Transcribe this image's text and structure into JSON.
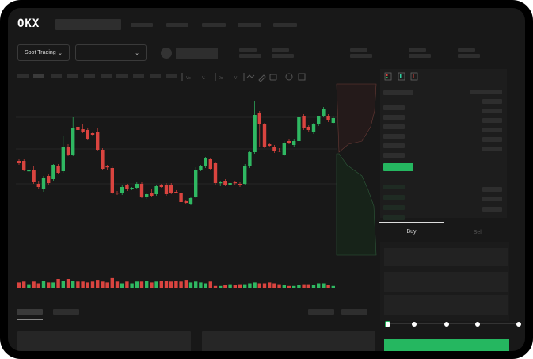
{
  "app": {
    "brand": "OKX"
  },
  "toolbar": {
    "market_select": "Spot Trading"
  },
  "trade": {
    "buy_tab": "Buy",
    "sell_tab": "Sell"
  },
  "colors": {
    "up": "#2fb862",
    "down": "#d9443f",
    "accent": "#25b760",
    "background": "#181818"
  },
  "icons": [
    "chevron-down-icon",
    "order-book-both-icon",
    "order-book-bids-icon",
    "order-book-asks-icon",
    "indicator-icon",
    "draw-line-icon",
    "ruler-icon",
    "camera-icon",
    "settings-icon",
    "fullscreen-icon"
  ],
  "chart_data": {
    "type": "candlestick",
    "grid": true,
    "candles": [
      [
        97,
        99,
        92,
        94
      ],
      [
        97,
        99,
        84,
        86
      ],
      [
        84,
        87,
        83,
        85
      ],
      [
        85,
        90,
        68,
        70
      ],
      [
        68,
        71,
        62,
        64
      ],
      [
        61,
        78,
        58,
        76
      ],
      [
        78,
        80,
        67,
        69
      ],
      [
        74,
        93,
        72,
        92
      ],
      [
        91,
        93,
        80,
        82
      ],
      [
        84,
        128,
        82,
        115
      ],
      [
        114,
        118,
        103,
        105
      ],
      [
        105,
        152,
        103,
        138
      ],
      [
        140,
        142,
        134,
        136
      ],
      [
        137,
        144,
        132,
        134
      ],
      [
        136,
        138,
        123,
        125
      ],
      [
        132,
        134,
        128,
        130
      ],
      [
        134,
        138,
        109,
        111
      ],
      [
        111,
        113,
        85,
        87
      ],
      [
        90,
        92,
        86,
        89
      ],
      [
        88,
        90,
        55,
        57
      ],
      [
        57,
        59,
        54,
        56
      ],
      [
        56,
        66,
        54,
        64
      ],
      [
        66,
        68,
        59,
        61
      ],
      [
        62,
        64,
        60,
        63
      ],
      [
        63,
        70,
        61,
        68
      ],
      [
        68,
        70,
        50,
        52
      ],
      [
        51,
        56,
        49,
        55
      ],
      [
        57,
        61,
        51,
        53
      ],
      [
        55,
        66,
        53,
        65
      ],
      [
        66,
        68,
        63,
        64
      ],
      [
        67,
        69,
        53,
        55
      ],
      [
        67,
        69,
        55,
        57
      ],
      [
        58,
        60,
        56,
        57
      ],
      [
        56,
        58,
        43,
        45
      ],
      [
        46,
        48,
        43,
        44
      ],
      [
        43,
        52,
        41,
        50
      ],
      [
        52,
        89,
        50,
        85
      ],
      [
        86,
        92,
        84,
        90
      ],
      [
        90,
        102,
        88,
        100
      ],
      [
        99,
        101,
        85,
        87
      ],
      [
        94,
        96,
        67,
        69
      ],
      [
        69,
        72,
        65,
        70
      ],
      [
        72,
        74,
        65,
        67
      ],
      [
        67,
        72,
        65,
        69
      ],
      [
        70,
        72,
        66,
        69
      ],
      [
        68,
        70,
        64,
        67
      ],
      [
        68,
        93,
        66,
        91
      ],
      [
        90,
        110,
        88,
        108
      ],
      [
        108,
        172,
        106,
        155
      ],
      [
        157,
        160,
        114,
        143
      ],
      [
        143,
        145,
        113,
        115
      ],
      [
        118,
        120,
        115,
        116
      ],
      [
        115,
        117,
        107,
        109
      ],
      [
        110,
        113,
        108,
        109
      ],
      [
        105,
        122,
        103,
        120
      ],
      [
        122,
        124,
        118,
        120
      ],
      [
        117,
        124,
        115,
        122
      ],
      [
        122,
        154,
        120,
        152
      ],
      [
        154,
        156,
        136,
        138
      ],
      [
        140,
        142,
        134,
        136
      ],
      [
        133,
        145,
        131,
        143
      ],
      [
        143,
        154,
        141,
        153
      ],
      [
        154,
        165,
        152,
        163
      ],
      [
        154,
        156,
        146,
        148
      ],
      [
        145,
        153,
        143,
        151
      ]
    ],
    "volume": [
      6,
      7,
      4,
      7,
      5,
      8,
      6,
      6,
      10,
      8,
      10,
      8,
      7,
      7,
      6,
      7,
      9,
      7,
      6,
      11,
      7,
      5,
      7,
      5,
      7,
      7,
      8,
      6,
      7,
      8,
      8,
      7,
      8,
      7,
      9,
      6,
      7,
      6,
      5,
      7,
      2,
      2,
      3,
      4,
      3,
      4,
      4,
      5,
      6,
      5,
      5,
      6,
      5,
      4,
      3,
      2,
      2,
      3,
      4,
      4,
      3,
      5,
      5,
      3,
      2
    ]
  }
}
